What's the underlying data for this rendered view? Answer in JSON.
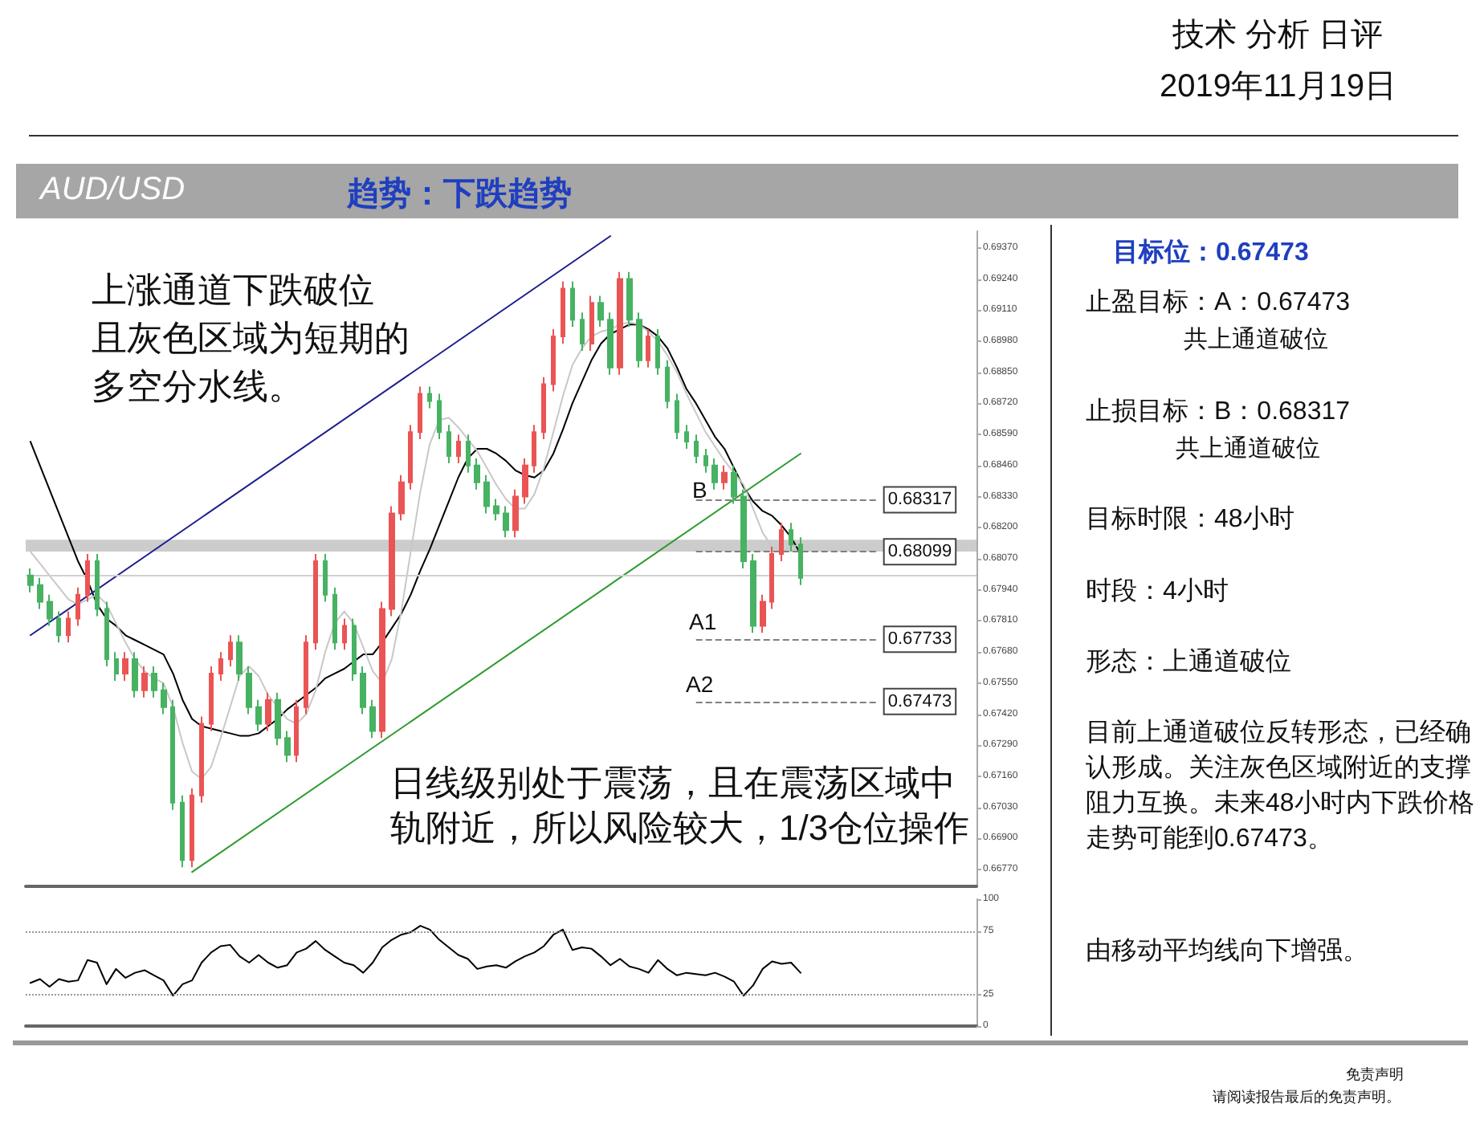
{
  "chart_data": [
    {
      "type": "candlestick",
      "title": "AUD/USD",
      "subtitle": "趋势：下跌趋势",
      "annotations": [
        "技术 分析 日评",
        "2019年11月19日",
        "上涨通道下跌破位",
        "且灰色区域为短期的",
        "多空分水线。",
        "日线级别处于震荡，且在震荡区域中轨附近，所以风险较大，1/3仓位操作",
        "目标位：0.67473",
        "止盈目标：A：0.67473",
        "共上通道破位",
        "止损目标：B：0.68317",
        "共上通道破位",
        "目标时限：48小时",
        "时段：4小时",
        "形态：上通道破位",
        "目前上通道破位反转形态，已经确认形成。关注灰色区域附近的支撑阻力互换。未来48小时内下跌价格走势可能到0.67473。",
        "由移动平均线向下增强。",
        "免责声明",
        "请阅读报告最后的免责声明。",
        "B",
        "A1",
        "A2"
      ],
      "categories": [
        null,
        null,
        null,
        null,
        null,
        null,
        null,
        null,
        null,
        null,
        null,
        null,
        null,
        null,
        null,
        null,
        null,
        null,
        null,
        null,
        null,
        null,
        null,
        null,
        null,
        null,
        null,
        null,
        null,
        null,
        null,
        null,
        null,
        null,
        null,
        null,
        null,
        null,
        null,
        null,
        null,
        null,
        null,
        null,
        null,
        null,
        null,
        null,
        null,
        null,
        null,
        null,
        null,
        null,
        null,
        null,
        null,
        null,
        null,
        null,
        null,
        null,
        null,
        null,
        null,
        null,
        null,
        null,
        null,
        null,
        null,
        null,
        null,
        null,
        null,
        null,
        null,
        null,
        null,
        null,
        null,
        null,
        null,
        null,
        null,
        null,
        null,
        null,
        null,
        null,
        null,
        null,
        null,
        null,
        null,
        null,
        null,
        null,
        null,
        null
      ],
      "ohlc": [
        [
          0.68,
          0.6803,
          0.6793,
          0.6796
        ],
        [
          0.6796,
          0.6799,
          0.6786,
          0.6789
        ],
        [
          0.6789,
          0.6792,
          0.6779,
          0.6782
        ],
        [
          0.6782,
          0.6785,
          0.6772,
          0.6775
        ],
        [
          0.6775,
          0.6785,
          0.6772,
          0.6782
        ],
        [
          0.6782,
          0.6795,
          0.6779,
          0.6792
        ],
        [
          0.6792,
          0.6809,
          0.6789,
          0.6806
        ],
        [
          0.6806,
          0.6809,
          0.6783,
          0.6786
        ],
        [
          0.6786,
          0.6789,
          0.6762,
          0.6765
        ],
        [
          0.6765,
          0.6768,
          0.6756,
          0.6759
        ],
        [
          0.6759,
          0.6768,
          0.6756,
          0.6765
        ],
        [
          0.6765,
          0.6768,
          0.6749,
          0.6752
        ],
        [
          0.6752,
          0.6762,
          0.6749,
          0.6759
        ],
        [
          0.6759,
          0.6762,
          0.6749,
          0.6752
        ],
        [
          0.6752,
          0.6755,
          0.6742,
          0.6745
        ],
        [
          0.6745,
          0.6748,
          0.6702,
          0.6705
        ],
        [
          0.6705,
          0.6708,
          0.6678,
          0.6681
        ],
        [
          0.6681,
          0.6711,
          0.6678,
          0.6708
        ],
        [
          0.6708,
          0.6741,
          0.6705,
          0.6738
        ],
        [
          0.6738,
          0.6762,
          0.6735,
          0.6759
        ],
        [
          0.6759,
          0.6768,
          0.6756,
          0.6765
        ],
        [
          0.6765,
          0.6775,
          0.6762,
          0.6772
        ],
        [
          0.6772,
          0.6775,
          0.6756,
          0.6759
        ],
        [
          0.6759,
          0.6762,
          0.6742,
          0.6745
        ],
        [
          0.6745,
          0.6748,
          0.6735,
          0.6738
        ],
        [
          0.6738,
          0.6751,
          0.6735,
          0.6748
        ],
        [
          0.6748,
          0.6751,
          0.6729,
          0.6732
        ],
        [
          0.6732,
          0.6735,
          0.6722,
          0.6725
        ],
        [
          0.6725,
          0.6748,
          0.6722,
          0.6745
        ],
        [
          0.6745,
          0.6775,
          0.6742,
          0.6772
        ],
        [
          0.6772,
          0.6809,
          0.6769,
          0.6806
        ],
        [
          0.6806,
          0.6809,
          0.6789,
          0.6792
        ],
        [
          0.6792,
          0.6795,
          0.6769,
          0.6772
        ],
        [
          0.6772,
          0.6782,
          0.6769,
          0.6779
        ],
        [
          0.6779,
          0.6782,
          0.6756,
          0.6759
        ],
        [
          0.6759,
          0.6762,
          0.6742,
          0.6745
        ],
        [
          0.6745,
          0.6748,
          0.6732,
          0.6735
        ],
        [
          0.6735,
          0.6789,
          0.6732,
          0.6786
        ],
        [
          0.6786,
          0.6829,
          0.6783,
          0.6826
        ],
        [
          0.6826,
          0.6842,
          0.6823,
          0.6839
        ],
        [
          0.6839,
          0.6863,
          0.6836,
          0.686
        ],
        [
          0.686,
          0.6879,
          0.6857,
          0.6876
        ],
        [
          0.6876,
          0.6879,
          0.687,
          0.6873
        ],
        [
          0.6873,
          0.6876,
          0.6857,
          0.686
        ],
        [
          0.686,
          0.6863,
          0.6847,
          0.685
        ],
        [
          0.685,
          0.6859,
          0.6847,
          0.6856
        ],
        [
          0.6856,
          0.6859,
          0.6843,
          0.6846
        ],
        [
          0.6846,
          0.6849,
          0.6836,
          0.6839
        ],
        [
          0.6839,
          0.6842,
          0.6826,
          0.6829
        ],
        [
          0.6829,
          0.6832,
          0.6823,
          0.6826
        ],
        [
          0.6826,
          0.6829,
          0.6816,
          0.6819
        ],
        [
          0.6819,
          0.6836,
          0.6816,
          0.6833
        ],
        [
          0.6833,
          0.6849,
          0.683,
          0.6846
        ],
        [
          0.6846,
          0.6863,
          0.6843,
          0.686
        ],
        [
          0.686,
          0.6883,
          0.6857,
          0.688
        ],
        [
          0.688,
          0.6903,
          0.6877,
          0.69
        ],
        [
          0.69,
          0.6923,
          0.6897,
          0.692
        ],
        [
          0.692,
          0.6923,
          0.6904,
          0.6907
        ],
        [
          0.6907,
          0.691,
          0.6894,
          0.6897
        ],
        [
          0.6897,
          0.6917,
          0.6894,
          0.6914
        ],
        [
          0.6914,
          0.6917,
          0.6904,
          0.6907
        ],
        [
          0.6907,
          0.691,
          0.6884,
          0.6887
        ],
        [
          0.6887,
          0.6927,
          0.6884,
          0.6924
        ],
        [
          0.6924,
          0.6927,
          0.6904,
          0.6907
        ],
        [
          0.6907,
          0.691,
          0.6887,
          0.689
        ],
        [
          0.689,
          0.6903,
          0.6887,
          0.69
        ],
        [
          0.69,
          0.6903,
          0.6884,
          0.6887
        ],
        [
          0.6887,
          0.689,
          0.687,
          0.6873
        ],
        [
          0.6873,
          0.6876,
          0.6857,
          0.686
        ],
        [
          0.686,
          0.6863,
          0.6853,
          0.6856
        ],
        [
          0.6856,
          0.6859,
          0.6847,
          0.685
        ],
        [
          0.685,
          0.6853,
          0.6843,
          0.6846
        ],
        [
          0.6846,
          0.6849,
          0.6836,
          0.6839
        ],
        [
          0.6839,
          0.6846,
          0.6836,
          0.6843
        ],
        [
          0.6843,
          0.6846,
          0.683,
          0.6833
        ],
        [
          0.6833,
          0.6836,
          0.6803,
          0.6806
        ],
        [
          0.6806,
          0.6809,
          0.6776,
          0.6779
        ],
        [
          0.6779,
          0.6792,
          0.6776,
          0.6789
        ],
        [
          0.6789,
          0.6812,
          0.6786,
          0.6809
        ],
        [
          0.6809,
          0.6822,
          0.6806,
          0.6819
        ],
        [
          0.6819,
          0.6822,
          0.681,
          0.6813
        ],
        [
          0.6813,
          0.6816,
          0.6796,
          0.6799
        ],
        null,
        null,
        null,
        null,
        null,
        null,
        null,
        null,
        null,
        null,
        null,
        null,
        null,
        null,
        null,
        null,
        null,
        null
      ],
      "series": [
        {
          "type": "line",
          "color": "#000000",
          "values": [
            0.6856,
            0.6846,
            0.6836,
            0.6826,
            0.6816,
            0.6806,
            0.6798,
            0.6788,
            0.6782,
            0.6779,
            0.6775,
            0.6773,
            0.6771,
            0.6769,
            0.6767,
            0.6759,
            0.6748,
            0.674,
            0.6737,
            0.6736,
            0.6735,
            0.6734,
            0.6733,
            0.6733,
            0.6734,
            0.6737,
            0.674,
            0.6744,
            0.6747,
            0.675,
            0.6753,
            0.6757,
            0.6759,
            0.6761,
            0.6764,
            0.6767,
            0.6767,
            0.6772,
            0.6778,
            0.6784,
            0.6792,
            0.6802,
            0.6811,
            0.6821,
            0.6831,
            0.6841,
            0.6849,
            0.6853,
            0.6853,
            0.6851,
            0.6848,
            0.6844,
            0.6842,
            0.6841,
            0.6844,
            0.6851,
            0.6861,
            0.6872,
            0.6881,
            0.689,
            0.6897,
            0.6901,
            0.6903,
            0.6905,
            0.6905,
            0.6903,
            0.69,
            0.6895,
            0.6887,
            0.6878,
            0.6872,
            0.6865,
            0.6858,
            0.6853,
            0.6845,
            0.6837,
            0.6831,
            0.6827,
            0.6825,
            0.6821,
            0.6816,
            0.6809,
            null,
            null,
            null,
            null,
            null,
            null,
            null,
            null,
            null,
            null,
            null,
            null,
            null,
            null,
            null,
            null,
            null,
            null
          ]
        },
        {
          "type": "line",
          "color": "#c8c8c8",
          "values": [
            0.681,
            0.6805,
            0.68,
            0.6795,
            0.679,
            0.6788,
            0.679,
            0.6792,
            0.6788,
            0.678,
            0.6772,
            0.6765,
            0.676,
            0.6757,
            0.6755,
            0.6745,
            0.673,
            0.6718,
            0.6715,
            0.672,
            0.6732,
            0.6745,
            0.6758,
            0.6762,
            0.6758,
            0.675,
            0.6745,
            0.674,
            0.6738,
            0.6742,
            0.6752,
            0.6768,
            0.678,
            0.6785,
            0.678,
            0.677,
            0.676,
            0.6755,
            0.6765,
            0.6785,
            0.681,
            0.6835,
            0.6855,
            0.6865,
            0.6866,
            0.6862,
            0.6857,
            0.6852,
            0.6845,
            0.6838,
            0.6832,
            0.6828,
            0.6828,
            0.6834,
            0.6845,
            0.686,
            0.6875,
            0.6888,
            0.6895,
            0.69,
            0.6902,
            0.6903,
            0.6905,
            0.6906,
            0.6905,
            0.6902,
            0.6898,
            0.6892,
            0.6885,
            0.6876,
            0.6868,
            0.686,
            0.6854,
            0.6848,
            0.6843,
            0.6838,
            0.6828,
            0.6818,
            0.6812,
            0.681,
            0.6812,
            0.6813,
            null,
            null,
            null,
            null,
            null,
            null,
            null,
            null,
            null,
            null,
            null,
            null,
            null,
            null,
            null,
            null,
            null,
            null
          ]
        },
        {
          "type": "line",
          "color": "#1c1c8c",
          "values": [
            0.6775,
            null,
            null,
            null,
            null,
            null,
            null,
            null,
            null,
            null,
            null,
            null,
            null,
            null,
            null,
            null,
            null,
            null,
            null,
            null,
            null,
            null,
            null,
            null,
            null,
            null,
            null,
            null,
            null,
            null,
            null,
            null,
            null,
            null,
            null,
            null,
            null,
            null,
            null,
            null,
            null,
            null,
            null,
            null,
            null,
            null,
            null,
            null,
            null,
            null,
            null,
            null,
            null,
            null,
            null,
            null,
            null,
            null,
            null,
            null,
            null,
            0.6942,
            null,
            null,
            null,
            null,
            null,
            null,
            null,
            null,
            null,
            null,
            null,
            null,
            null,
            null,
            null,
            null,
            null,
            null,
            null,
            null,
            null,
            null,
            null,
            null,
            null,
            null,
            null,
            null,
            null,
            null,
            null,
            null,
            null,
            null,
            null,
            null,
            null,
            null
          ]
        },
        {
          "type": "line",
          "color": "#2e9a2e",
          "values": [
            null,
            null,
            null,
            null,
            null,
            null,
            null,
            null,
            null,
            null,
            null,
            null,
            null,
            null,
            null,
            null,
            null,
            0.6676,
            null,
            null,
            null,
            null,
            null,
            null,
            null,
            null,
            null,
            null,
            null,
            null,
            null,
            null,
            null,
            null,
            null,
            null,
            null,
            null,
            null,
            null,
            null,
            null,
            null,
            null,
            null,
            null,
            null,
            null,
            null,
            null,
            null,
            null,
            null,
            null,
            null,
            null,
            null,
            null,
            null,
            null,
            null,
            null,
            null,
            null,
            null,
            null,
            null,
            null,
            null,
            null,
            null,
            null,
            null,
            null,
            null,
            null,
            null,
            null,
            null,
            null,
            null,
            0.6851,
            null,
            null,
            null,
            null,
            null,
            null,
            null,
            null,
            null,
            null,
            null,
            null,
            null,
            null,
            null,
            null,
            null,
            null
          ]
        }
      ],
      "ylim": [
        0.667,
        0.6944
      ],
      "yticks": [
        {
          "value": 0.6677,
          "label": "0.66770"
        },
        {
          "value": 0.669,
          "label": "0.66900"
        },
        {
          "value": 0.6703,
          "label": "0.67030"
        },
        {
          "value": 0.6716,
          "label": "0.67160"
        },
        {
          "value": 0.6729,
          "label": "0.67290"
        },
        {
          "value": 0.6742,
          "label": "0.67420"
        },
        {
          "value": 0.6755,
          "label": "0.67550"
        },
        {
          "value": 0.6768,
          "label": "0.67680"
        },
        {
          "value": 0.6781,
          "label": "0.67810"
        },
        {
          "value": 0.6794,
          "label": "0.67940"
        },
        {
          "value": 0.6807,
          "label": "0.68070"
        },
        {
          "value": 0.682,
          "label": "0.68200"
        },
        {
          "value": 0.6833,
          "label": "0.68330"
        },
        {
          "value": 0.6846,
          "label": "0.68460"
        },
        {
          "value": 0.6859,
          "label": "0.68590"
        },
        {
          "value": 0.6872,
          "label": "0.68720"
        },
        {
          "value": 0.6885,
          "label": "0.68850"
        },
        {
          "value": 0.6898,
          "label": "0.68980"
        },
        {
          "value": 0.6911,
          "label": "0.69110"
        },
        {
          "value": 0.6924,
          "label": "0.69240"
        },
        {
          "value": 0.6937,
          "label": "0.69370"
        }
      ],
      "tick_labels": "y",
      "bands": [
        {
          "axis": "y",
          "from": 0.681,
          "to": 0.6815,
          "color": "#cccccc"
        }
      ],
      "ref_lines": [
        {
          "axis": "y",
          "value": 0.68317,
          "label": "0.68317",
          "color": "#808080",
          "line_style": "dashed"
        },
        {
          "axis": "y",
          "value": 0.68099,
          "label": "0.68099",
          "color": "#808080",
          "line_style": "dashed"
        },
        {
          "axis": "y",
          "value": 0.67733,
          "label": "0.67733",
          "color": "#808080",
          "line_style": "dashed"
        },
        {
          "axis": "y",
          "value": 0.67473,
          "label": "0.67473",
          "color": "#808080",
          "line_style": "dashed"
        },
        {
          "axis": "y",
          "value": 0.6801,
          "label": null,
          "color": "#d0d0d0",
          "line_style": "solid"
        }
      ]
    },
    {
      "type": "line",
      "categories": [
        null,
        null,
        null,
        null,
        null,
        null,
        null,
        null,
        null,
        null,
        null,
        null,
        null,
        null,
        null,
        null,
        null,
        null,
        null,
        null,
        null,
        null,
        null,
        null,
        null,
        null,
        null,
        null,
        null,
        null,
        null,
        null,
        null,
        null,
        null,
        null,
        null,
        null,
        null,
        null,
        null,
        null,
        null,
        null,
        null,
        null,
        null,
        null,
        null,
        null,
        null,
        null,
        null,
        null,
        null,
        null,
        null,
        null,
        null,
        null,
        null,
        null,
        null,
        null,
        null,
        null,
        null,
        null,
        null,
        null,
        null,
        null,
        null,
        null,
        null,
        null,
        null,
        null,
        null,
        null,
        null,
        null,
        null,
        null,
        null,
        null,
        null,
        null,
        null,
        null,
        null,
        null,
        null,
        null,
        null,
        null,
        null,
        null,
        null,
        null
      ],
      "series": [
        {
          "color": "#000000",
          "values": [
            34,
            37,
            31,
            37,
            35,
            36,
            52,
            50,
            33,
            45,
            38,
            42,
            44,
            40,
            36,
            24,
            33,
            36,
            50,
            58,
            63,
            64,
            55,
            50,
            56,
            50,
            46,
            48,
            58,
            61,
            67,
            60,
            55,
            50,
            48,
            42,
            50,
            62,
            68,
            72,
            74,
            79,
            76,
            68,
            62,
            56,
            53,
            45,
            47,
            48,
            46,
            51,
            55,
            58,
            63,
            72,
            76,
            60,
            62,
            61,
            55,
            48,
            53,
            47,
            45,
            42,
            52,
            45,
            40,
            42,
            41,
            40,
            42,
            39,
            35,
            24,
            32,
            45,
            51,
            49,
            50,
            42,
            null,
            null,
            null,
            null,
            null,
            null,
            null,
            null,
            null,
            null,
            null,
            null,
            null,
            null,
            null,
            null,
            null,
            null
          ]
        }
      ],
      "ylim": [
        0,
        100
      ],
      "yticks": [
        0,
        25,
        75,
        100
      ],
      "tick_labels": "y",
      "ref_lines": [
        {
          "axis": "y",
          "value": 75,
          "label": null,
          "color": "#999999",
          "line_style": "dotted"
        },
        {
          "axis": "y",
          "value": 25,
          "label": null,
          "color": "#999999",
          "line_style": "dotted"
        }
      ]
    }
  ]
}
